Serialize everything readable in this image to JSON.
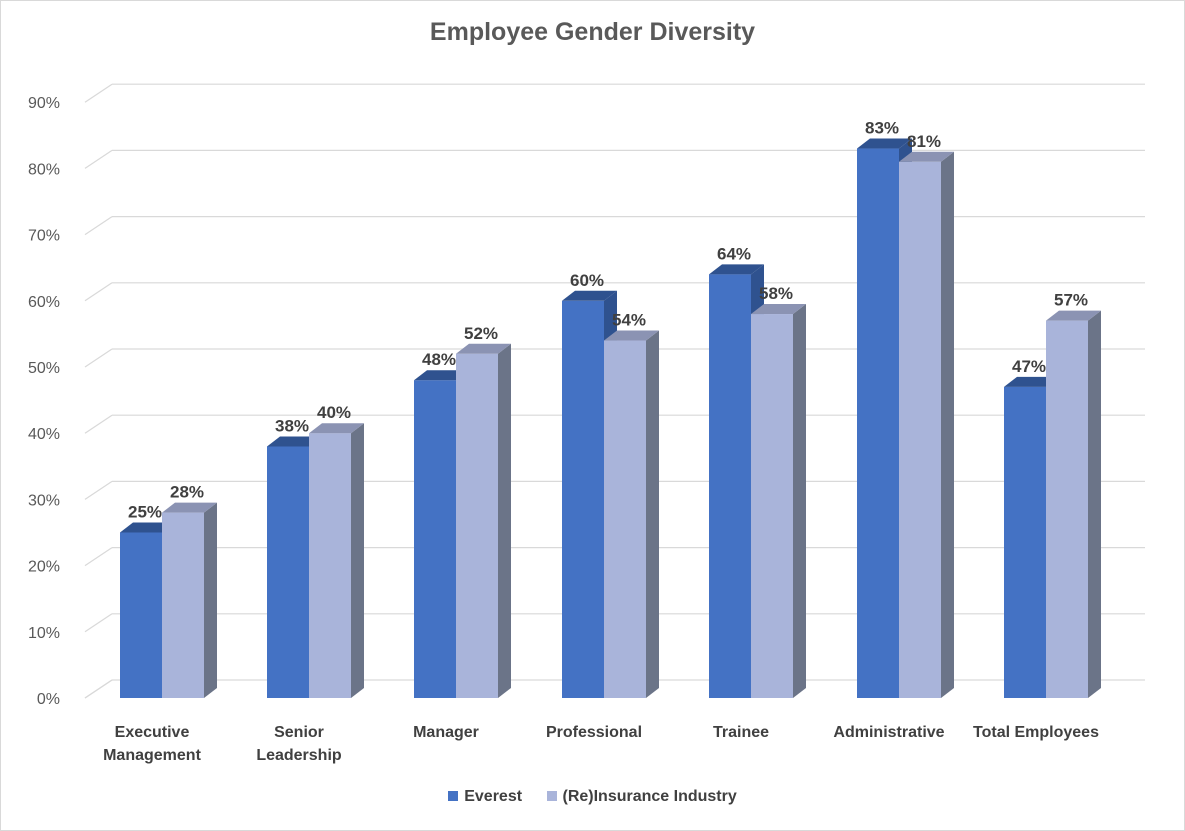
{
  "chart_data": {
    "type": "bar",
    "title": "Employee Gender Diversity",
    "categories": [
      "Executive\nManagement",
      "Senior\nLeadership",
      "Manager",
      "Professional",
      "Trainee",
      "Administrative",
      "Total Employees"
    ],
    "series": [
      {
        "name": "Everest",
        "values": [
          25,
          38,
          48,
          60,
          64,
          83,
          47
        ],
        "labels": [
          "25%",
          "38%",
          "48%",
          "60%",
          "64%",
          "83%",
          "47%"
        ],
        "color": "#4472c4",
        "top": "#2f528f",
        "side": "#2f528f"
      },
      {
        "name": "(Re)Insurance Industry",
        "values": [
          28,
          40,
          52,
          54,
          58,
          81,
          57
        ],
        "labels": [
          "28%",
          "40%",
          "52%",
          "54%",
          "58%",
          "81%",
          "57%"
        ],
        "color": "#a9b4da",
        "top": "#8b93b3",
        "side": "#6b7488"
      }
    ],
    "yticks": [
      "0%",
      "10%",
      "20%",
      "30%",
      "40%",
      "50%",
      "60%",
      "70%",
      "80%",
      "90%"
    ],
    "ylim": [
      0,
      90
    ],
    "xlabel": "",
    "ylabel": "",
    "grid": true,
    "legend": "bottom"
  }
}
